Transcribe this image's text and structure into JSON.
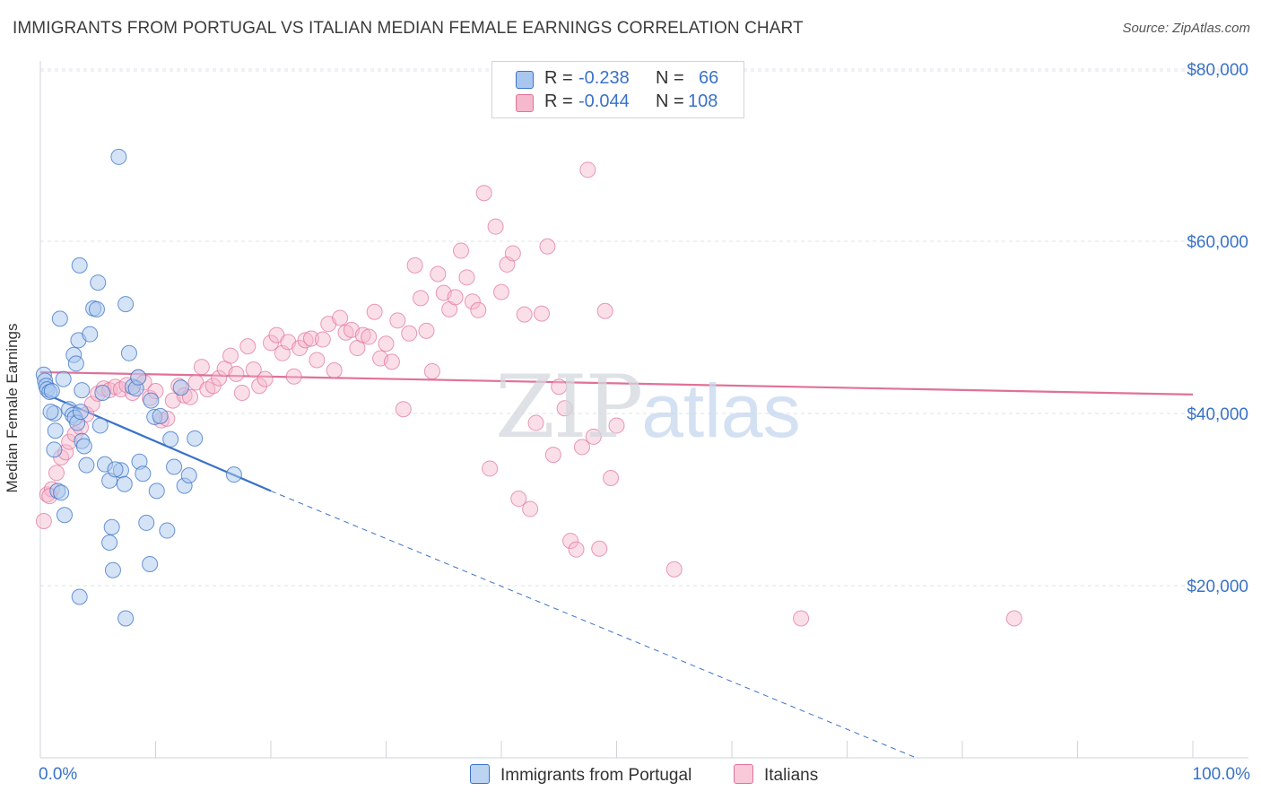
{
  "title": "IMMIGRANTS FROM PORTUGAL VS ITALIAN MEDIAN FEMALE EARNINGS CORRELATION CHART",
  "source": "Source: ZipAtlas.com",
  "watermark": {
    "zip": "ZIP",
    "atlas": "atlas"
  },
  "colors": {
    "blue": "#3a72c8",
    "blue_fill": "#a9c7ee",
    "pink": "#e07199",
    "pink_fill": "#f6b8cd",
    "grid": "#dfe3e8"
  },
  "legend": {
    "rows": [
      {
        "r_label": "R =",
        "r_value": "-0.238",
        "n_label": "N =",
        "n_value": "66"
      },
      {
        "r_label": "R =",
        "r_value": "-0.044",
        "n_label": "N =",
        "n_value": "108"
      }
    ]
  },
  "chart_data": {
    "type": "scatter",
    "title": "IMMIGRANTS FROM PORTUGAL VS ITALIAN MEDIAN FEMALE EARNINGS CORRELATION CHART",
    "xlabel": "",
    "ylabel": "Median Female Earnings",
    "xlim": [
      0,
      100
    ],
    "ylim": [
      0,
      82000
    ],
    "x_tick_labels": [
      "0.0%",
      "100.0%"
    ],
    "y_ticks": [
      20000,
      40000,
      60000,
      80000
    ],
    "y_tick_labels": [
      "$20,000",
      "$40,000",
      "$60,000",
      "$80,000"
    ],
    "grid": true,
    "legend_position": "bottom",
    "series": [
      {
        "name": "Immigrants from Portugal",
        "color": "#3a72c8",
        "trend": {
          "x0": 0.2,
          "y0": 42400,
          "x1": 20,
          "y1": 31000,
          "dash_to_x": 76,
          "dash_to_y": 0
        },
        "points": [
          [
            0.3,
            44500
          ],
          [
            0.4,
            43800
          ],
          [
            0.5,
            43200
          ],
          [
            0.6,
            42800
          ],
          [
            0.8,
            42500
          ],
          [
            1.0,
            42600
          ],
          [
            1.2,
            40000
          ],
          [
            1.3,
            38000
          ],
          [
            1.2,
            35800
          ],
          [
            1.5,
            31000
          ],
          [
            1.8,
            30800
          ],
          [
            2.1,
            28200
          ],
          [
            1.7,
            51000
          ],
          [
            2.0,
            44000
          ],
          [
            2.5,
            40500
          ],
          [
            2.8,
            39800
          ],
          [
            3.0,
            39500
          ],
          [
            3.2,
            38900
          ],
          [
            2.9,
            46800
          ],
          [
            3.1,
            45800
          ],
          [
            3.3,
            48500
          ],
          [
            3.5,
            40200
          ],
          [
            3.6,
            36800
          ],
          [
            3.8,
            36200
          ],
          [
            4.0,
            34000
          ],
          [
            3.4,
            57200
          ],
          [
            3.6,
            42700
          ],
          [
            4.3,
            49200
          ],
          [
            4.6,
            52200
          ],
          [
            4.9,
            52100
          ],
          [
            5.0,
            55200
          ],
          [
            5.2,
            38600
          ],
          [
            5.4,
            42400
          ],
          [
            5.6,
            34100
          ],
          [
            6.0,
            32200
          ],
          [
            6.2,
            26800
          ],
          [
            6.0,
            25000
          ],
          [
            6.3,
            21800
          ],
          [
            7.0,
            33400
          ],
          [
            7.3,
            31800
          ],
          [
            6.8,
            69800
          ],
          [
            6.5,
            33500
          ],
          [
            7.4,
            52700
          ],
          [
            7.7,
            47000
          ],
          [
            8.0,
            43100
          ],
          [
            8.3,
            42900
          ],
          [
            8.6,
            34400
          ],
          [
            8.9,
            33000
          ],
          [
            9.2,
            27300
          ],
          [
            9.5,
            22500
          ],
          [
            8.5,
            44200
          ],
          [
            9.6,
            41500
          ],
          [
            9.9,
            39600
          ],
          [
            10.1,
            31000
          ],
          [
            10.4,
            39700
          ],
          [
            11.0,
            26400
          ],
          [
            11.3,
            37000
          ],
          [
            11.6,
            33800
          ],
          [
            12.2,
            43000
          ],
          [
            12.5,
            31600
          ],
          [
            12.9,
            32800
          ],
          [
            13.4,
            37100
          ],
          [
            16.8,
            32900
          ],
          [
            7.4,
            16200
          ],
          [
            3.4,
            18700
          ],
          [
            0.9,
            40200
          ]
        ]
      },
      {
        "name": "Italians",
        "color": "#e07199",
        "trend": {
          "x0": 0,
          "y0": 44800,
          "x1": 100,
          "y1": 42200
        },
        "points": [
          [
            0.3,
            27500
          ],
          [
            0.6,
            30600
          ],
          [
            1.0,
            31200
          ],
          [
            1.4,
            33100
          ],
          [
            1.8,
            34900
          ],
          [
            2.2,
            35500
          ],
          [
            2.5,
            36700
          ],
          [
            3.0,
            37600
          ],
          [
            3.5,
            38400
          ],
          [
            4.0,
            39900
          ],
          [
            4.5,
            41100
          ],
          [
            5.0,
            42300
          ],
          [
            5.5,
            42900
          ],
          [
            6.0,
            42700
          ],
          [
            6.5,
            43100
          ],
          [
            7.0,
            42800
          ],
          [
            7.5,
            43300
          ],
          [
            8.0,
            42400
          ],
          [
            8.5,
            44200
          ],
          [
            9.0,
            43600
          ],
          [
            9.5,
            41800
          ],
          [
            10.0,
            42600
          ],
          [
            10.5,
            39200
          ],
          [
            11.0,
            39400
          ],
          [
            11.5,
            41500
          ],
          [
            12.0,
            43200
          ],
          [
            12.5,
            42100
          ],
          [
            13.0,
            41900
          ],
          [
            13.5,
            43600
          ],
          [
            14.0,
            45400
          ],
          [
            14.5,
            42800
          ],
          [
            15.0,
            43200
          ],
          [
            15.5,
            44100
          ],
          [
            16.0,
            45200
          ],
          [
            16.5,
            46700
          ],
          [
            17.0,
            44600
          ],
          [
            17.5,
            42400
          ],
          [
            18.0,
            47800
          ],
          [
            18.5,
            45100
          ],
          [
            19.0,
            43200
          ],
          [
            19.5,
            44000
          ],
          [
            20.0,
            48200
          ],
          [
            20.5,
            49100
          ],
          [
            21.0,
            47000
          ],
          [
            21.5,
            48300
          ],
          [
            22.0,
            44300
          ],
          [
            22.5,
            47600
          ],
          [
            23.0,
            48500
          ],
          [
            23.5,
            48700
          ],
          [
            24.0,
            46200
          ],
          [
            24.5,
            48600
          ],
          [
            25.0,
            50400
          ],
          [
            25.5,
            45000
          ],
          [
            26.0,
            51100
          ],
          [
            26.5,
            49400
          ],
          [
            27.0,
            49700
          ],
          [
            27.5,
            47600
          ],
          [
            28.0,
            49100
          ],
          [
            28.5,
            48900
          ],
          [
            29.0,
            51800
          ],
          [
            29.5,
            46400
          ],
          [
            30.0,
            48100
          ],
          [
            30.5,
            46000
          ],
          [
            31.0,
            50800
          ],
          [
            31.5,
            40500
          ],
          [
            32.0,
            49300
          ],
          [
            32.5,
            57200
          ],
          [
            33.0,
            53400
          ],
          [
            33.5,
            49600
          ],
          [
            34.0,
            44900
          ],
          [
            34.5,
            56200
          ],
          [
            35.0,
            54000
          ],
          [
            35.5,
            52100
          ],
          [
            36.0,
            53500
          ],
          [
            36.5,
            58900
          ],
          [
            37.0,
            55800
          ],
          [
            37.5,
            53000
          ],
          [
            38.0,
            52000
          ],
          [
            38.5,
            65600
          ],
          [
            39.0,
            33600
          ],
          [
            39.5,
            61700
          ],
          [
            40.0,
            54100
          ],
          [
            40.5,
            57300
          ],
          [
            41.0,
            58600
          ],
          [
            41.5,
            30100
          ],
          [
            42.0,
            51500
          ],
          [
            42.5,
            28900
          ],
          [
            43.0,
            38900
          ],
          [
            43.5,
            51600
          ],
          [
            44.0,
            59400
          ],
          [
            44.5,
            35200
          ],
          [
            45.0,
            43100
          ],
          [
            45.5,
            40600
          ],
          [
            46.0,
            25200
          ],
          [
            46.5,
            24200
          ],
          [
            47.0,
            36100
          ],
          [
            47.5,
            68300
          ],
          [
            48.0,
            37300
          ],
          [
            48.5,
            24300
          ],
          [
            49.0,
            51900
          ],
          [
            49.5,
            32500
          ],
          [
            50.0,
            38600
          ],
          [
            55.0,
            21900
          ],
          [
            66.0,
            16200
          ],
          [
            84.5,
            16200
          ],
          [
            0.8,
            30400
          ]
        ]
      }
    ]
  },
  "bottom_legend": [
    {
      "label": "Immigrants from Portugal"
    },
    {
      "label": "Italians"
    }
  ]
}
